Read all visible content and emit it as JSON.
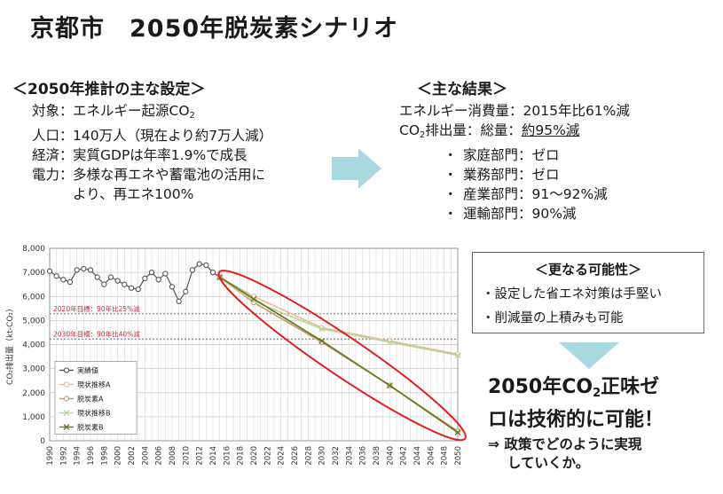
{
  "title": "京都市　2050年脱炭素シナリオ",
  "settings": {
    "heading": "＜2050年推計の主な設定＞",
    "rows": [
      {
        "key": "対象：",
        "value": "エネルギー起源CO",
        "sub": "2"
      },
      {
        "key": "人口：",
        "value": "140万人（現在より約7万人減）"
      },
      {
        "key": "経済：",
        "value": "実質GDPは年率1.9%で成長"
      },
      {
        "key": "電力：",
        "value": "多様な再エネや蓄電池の活用に",
        "cont": "より、再エネ100%"
      }
    ]
  },
  "results": {
    "heading": "＜主な結果＞",
    "energy": "エネルギー消費量：2015年比61%減",
    "co2_prefix": "CO",
    "co2_sub": "2",
    "co2_mid": "排出量：総量：",
    "co2_value": "約95%減",
    "sectors": [
      {
        "dot": "・",
        "text": "家庭部門：ゼロ"
      },
      {
        "dot": "・",
        "text": "業務部門：ゼロ"
      },
      {
        "dot": "・",
        "text": "産業部門：91～92%減"
      },
      {
        "dot": "・",
        "text": "運輸部門：90%減"
      }
    ]
  },
  "more": {
    "heading": "＜更なる可能性＞",
    "items": [
      "・設定した省エネ対策は手堅い",
      "・削減量の上積みも可能"
    ]
  },
  "conclusion": {
    "line1_a": "2050年CO",
    "line1_sub": "2",
    "line1_b": "正味ゼ",
    "line2": "ロは技術的に可能！"
  },
  "next": {
    "line1": "⇒ 政策でどのように実現",
    "line2": "していくか。"
  },
  "colors": {
    "arrow": "#a8d8e0",
    "ellipse": "#e02020",
    "actual": "#555555",
    "trendA": "#e8b898",
    "decarbA": "#c89870",
    "trendB": "#b8d898",
    "decarbB": "#6b7a20"
  },
  "chart_data": {
    "type": "line",
    "ylabel": "CO₂排出量（kt-CO₂）",
    "ylim": [
      0,
      8000
    ],
    "yticks": [
      "0",
      "1,000",
      "2,000",
      "3,000",
      "4,000",
      "5,000",
      "6,000",
      "7,000",
      "8,000"
    ],
    "xlim": [
      1990,
      2050
    ],
    "xticks": [
      "1990",
      "1992",
      "1994",
      "1996",
      "1998",
      "2000",
      "2002",
      "2004",
      "2006",
      "2008",
      "2010",
      "2012",
      "2014",
      "2016",
      "2018",
      "2020",
      "2022",
      "2024",
      "2026",
      "2028",
      "2030",
      "2032",
      "2034",
      "2036",
      "2038",
      "2040",
      "2042",
      "2044",
      "2046",
      "2048",
      "2050"
    ],
    "grid": true,
    "legend_placement": "bottom-left",
    "reference_lines": [
      {
        "label": "2020年目標：90年比25%減",
        "value": 5280
      },
      {
        "label": "2030年目標：90年比40%減",
        "value": 4230
      }
    ],
    "series": [
      {
        "name": "実績値",
        "x": [
          1990,
          1991,
          1992,
          1993,
          1994,
          1995,
          1996,
          1997,
          1998,
          1999,
          2000,
          2001,
          2002,
          2003,
          2004,
          2005,
          2006,
          2007,
          2008,
          2009,
          2010,
          2011,
          2012,
          2013,
          2014,
          2015
        ],
        "y": [
          7050,
          6850,
          6700,
          6600,
          7100,
          7150,
          7100,
          6800,
          6500,
          6800,
          6650,
          6500,
          6350,
          6300,
          6750,
          7000,
          6700,
          6950,
          6400,
          5800,
          6200,
          7100,
          7350,
          7300,
          7000,
          6800
        ]
      },
      {
        "name": "現状推移A",
        "x": [
          2015,
          2020,
          2030,
          2040,
          2050
        ],
        "y": [
          6800,
          6000,
          4700,
          4150,
          3600
        ]
      },
      {
        "name": "脱炭素A",
        "x": [
          2015,
          2020,
          2030,
          2040,
          2050
        ],
        "y": [
          6800,
          5750,
          4100,
          2300,
          400
        ]
      },
      {
        "name": "現状推移B",
        "x": [
          2015,
          2020,
          2030,
          2040,
          2050
        ],
        "y": [
          6800,
          5800,
          4650,
          4100,
          3550
        ]
      },
      {
        "name": "脱炭素B",
        "x": [
          2015,
          2020,
          2030,
          2040,
          2050
        ],
        "y": [
          6800,
          5900,
          4150,
          2300,
          350
        ]
      }
    ]
  }
}
